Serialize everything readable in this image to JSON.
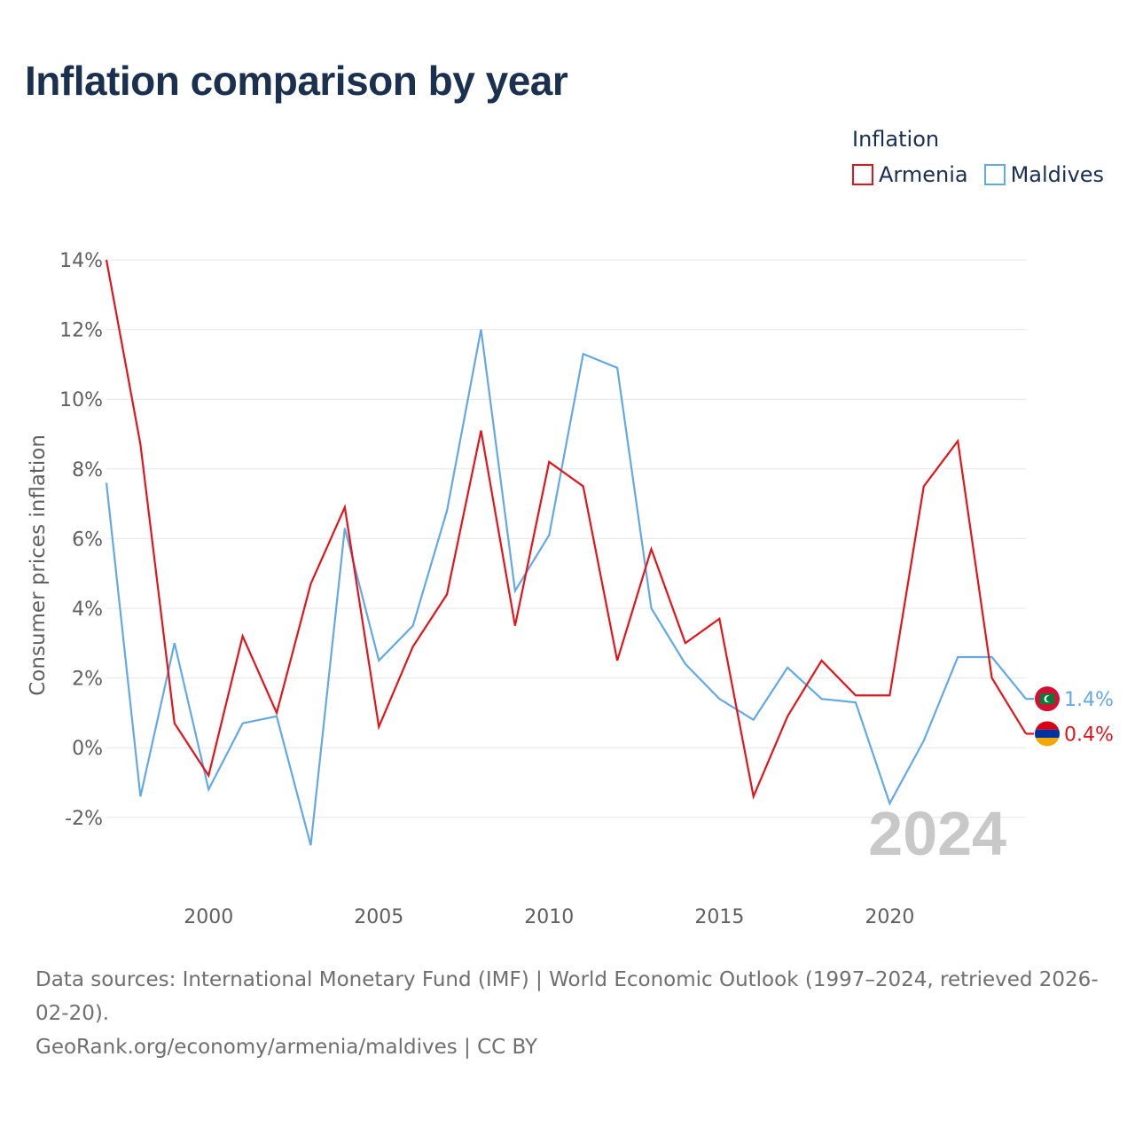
{
  "title": "Inflation comparison by year",
  "legend": {
    "title": "Inflation",
    "items": [
      {
        "label": "Armenia",
        "color": "#e3141b"
      },
      {
        "label": "Maldives",
        "color": "#63a9e4"
      }
    ]
  },
  "source": {
    "line1": "Data sources: International Monetary Fund (IMF) | World Economic Outlook (1997–2024, retrieved 2026-02-20).",
    "line2": "GeoRank.org/economy/armenia/maldives | CC BY"
  },
  "chart_data": {
    "type": "line",
    "title": "Inflation comparison by year",
    "xlabel": "",
    "ylabel": "Consumer prices inflation",
    "year_label": "2024",
    "xlim": [
      1997,
      2024
    ],
    "ylim": [
      -3,
      14
    ],
    "x_ticks": [
      2000,
      2005,
      2010,
      2015,
      2020
    ],
    "y_ticks": [
      -2,
      0,
      2,
      4,
      6,
      8,
      10,
      12,
      14
    ],
    "y_tick_labels": [
      "-2%",
      "0%",
      "2%",
      "4%",
      "6%",
      "8%",
      "10%",
      "12%",
      "14%"
    ],
    "grid": true,
    "x": [
      1997,
      1998,
      1999,
      2000,
      2001,
      2002,
      2003,
      2004,
      2005,
      2006,
      2007,
      2008,
      2009,
      2010,
      2011,
      2012,
      2013,
      2014,
      2015,
      2016,
      2017,
      2018,
      2019,
      2020,
      2021,
      2022,
      2023,
      2024
    ],
    "series": [
      {
        "name": "Armenia",
        "color": "#e3141b",
        "end_label": "0.4%",
        "flag": "armenia-flag-icon",
        "values": [
          14.0,
          8.7,
          0.7,
          -0.8,
          3.2,
          1.0,
          4.7,
          6.9,
          0.6,
          2.9,
          4.4,
          9.1,
          3.5,
          8.2,
          7.5,
          2.5,
          5.7,
          3.0,
          3.7,
          -1.4,
          0.9,
          2.5,
          1.5,
          1.5,
          7.5,
          8.8,
          2.0,
          0.4
        ]
      },
      {
        "name": "Maldives",
        "color": "#63a9e4",
        "end_label": "1.4%",
        "flag": "maldives-flag-icon",
        "values": [
          7.6,
          -1.4,
          3.0,
          -1.2,
          0.7,
          0.9,
          -2.8,
          6.3,
          2.5,
          3.5,
          6.8,
          12.0,
          4.5,
          6.1,
          11.3,
          10.9,
          4.0,
          2.4,
          1.4,
          0.8,
          2.3,
          1.4,
          1.3,
          -1.6,
          0.2,
          2.6,
          2.6,
          1.4
        ]
      }
    ]
  }
}
